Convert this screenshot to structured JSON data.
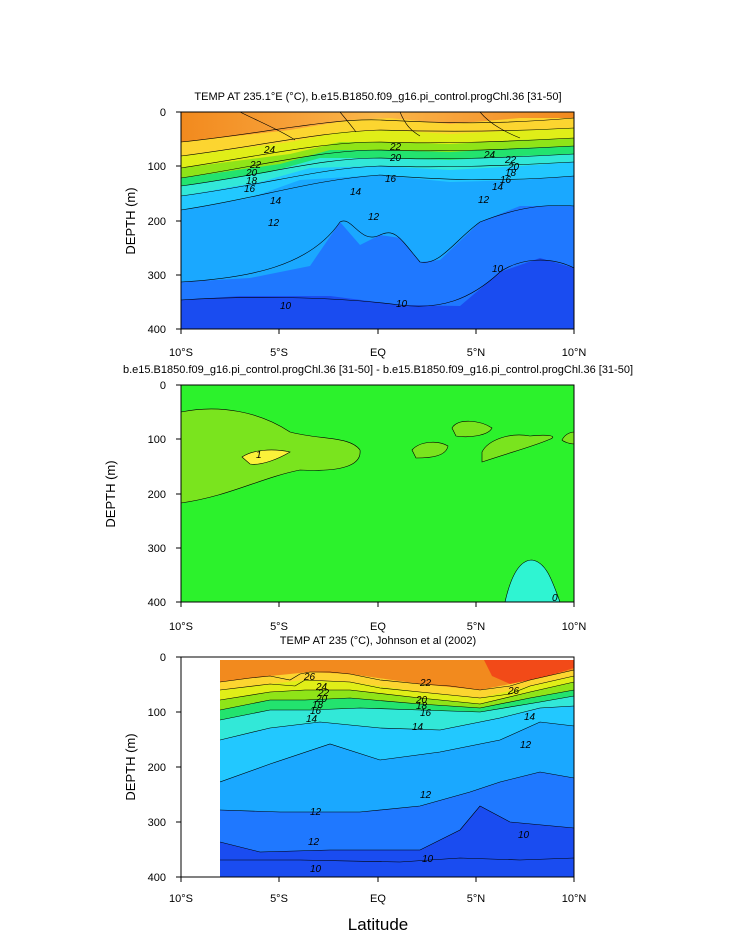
{
  "figure": {
    "xlabel": "Latitude"
  },
  "chart_data": [
    {
      "type": "contour",
      "title": "TEMP AT 235.1°E (°C), b.e15.B1850.f09_g16.pi_control.progChl.36 [31-50]",
      "ylabel": "DEPTH (m)",
      "xlim": [
        -10,
        10
      ],
      "ylim": [
        400,
        0
      ],
      "x_ticks": [
        "10°S",
        "5°S",
        "EQ",
        "5°N",
        "10°N"
      ],
      "y_ticks": [
        "0",
        "100",
        "200",
        "300",
        "400"
      ],
      "contour_labels": [
        "24",
        "22",
        "20",
        "18",
        "16",
        "14",
        "12",
        "22",
        "20",
        "16",
        "14",
        "12",
        "24",
        "22",
        "20",
        "18",
        "16",
        "14",
        "12",
        "10",
        "10",
        "10"
      ]
    },
    {
      "type": "contour",
      "title": "b.e15.B1850.f09_g16.pi_control.progChl.36 [31-50] - b.e15.B1850.f09_g16.pi_control.progChl.36 [31-50]",
      "ylabel": "DEPTH (m)",
      "xlim": [
        -10,
        10
      ],
      "ylim": [
        400,
        0
      ],
      "x_ticks": [
        "10°S",
        "5°S",
        "EQ",
        "5°N",
        "10°N"
      ],
      "y_ticks": [
        "0",
        "100",
        "200",
        "300",
        "400"
      ],
      "contour_labels": [
        "1",
        "0"
      ]
    },
    {
      "type": "contour",
      "title": "TEMP AT 235 (°C), Johnson et al (2002)",
      "ylabel": "DEPTH (m)",
      "xlim": [
        -10,
        10
      ],
      "ylim": [
        400,
        0
      ],
      "x_ticks": [
        "10°S",
        "5°S",
        "EQ",
        "5°N",
        "10°N"
      ],
      "y_ticks": [
        "0",
        "100",
        "200",
        "300",
        "400"
      ],
      "contour_labels": [
        "26",
        "24",
        "22",
        "20",
        "18",
        "16",
        "14",
        "22",
        "20",
        "18",
        "16",
        "14",
        "26",
        "14",
        "12",
        "12",
        "12",
        "12",
        "10",
        "10",
        "10"
      ]
    }
  ]
}
